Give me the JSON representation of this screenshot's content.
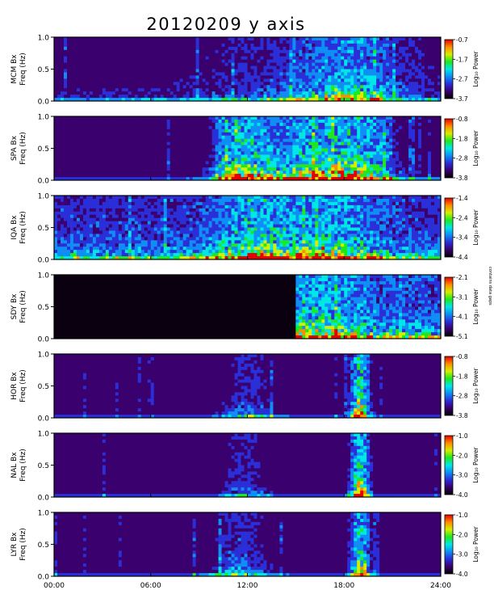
{
  "chart_data": {
    "type": "heatmap",
    "title": "20120209 y axis",
    "x": {
      "ticks": [
        "00:00",
        "06:00",
        "12:00",
        "18:00",
        "24:00"
      ],
      "range_hours": [
        0,
        24
      ]
    },
    "panels": [
      {
        "station": "MCM Bx",
        "ylabel": "Freq (Hz)",
        "yticks": [
          "1.0",
          "0.5",
          "0.0"
        ],
        "ylim": [
          0,
          1
        ],
        "colorbar_label": "Log₁₀ Power",
        "colorbar_ticks": [
          "-0.7",
          "-1.7",
          "-2.7",
          "-3.7"
        ],
        "clim": [
          -3.7,
          -0.7
        ]
      },
      {
        "station": "SPA Bx",
        "ylabel": "Freq (Hz)",
        "yticks": [
          "1.0",
          "0.5",
          "0.0"
        ],
        "ylim": [
          0,
          1
        ],
        "colorbar_label": "Log₁₀ Power",
        "colorbar_ticks": [
          "-0.8",
          "-1.8",
          "-2.8",
          "-3.8"
        ],
        "clim": [
          -3.8,
          -0.8
        ]
      },
      {
        "station": "IQA Bx",
        "ylabel": "Freq (Hz)",
        "yticks": [
          "1.0",
          "0.5",
          "0.0"
        ],
        "ylim": [
          0,
          1
        ],
        "colorbar_label": "Log₁₀ Power",
        "colorbar_ticks": [
          "-1.4",
          "-2.4",
          "-3.4",
          "-4.4"
        ],
        "clim": [
          -4.4,
          -1.4
        ]
      },
      {
        "station": "SDY Bx",
        "ylabel": "Freq (Hz)",
        "yticks": [
          "1.0",
          "0.5",
          "0.0"
        ],
        "ylim": [
          0,
          1
        ],
        "colorbar_label": "Log₁₀ Power",
        "colorbar_ticks": [
          "-2.1",
          "-3.1",
          "-4.1",
          "-5.1"
        ],
        "clim": [
          -5.1,
          -2.1
        ]
      },
      {
        "station": "HOR Bx",
        "ylabel": "Freq (Hz)",
        "yticks": [
          "1.0",
          "0.5",
          "0.0"
        ],
        "ylim": [
          0,
          1
        ],
        "colorbar_label": "Log₁₀ Power",
        "colorbar_ticks": [
          "-0.8",
          "-1.8",
          "-2.8",
          "-3.8"
        ],
        "clim": [
          -3.8,
          -0.8
        ]
      },
      {
        "station": "NAL Bx",
        "ylabel": "Freq (Hz)",
        "yticks": [
          "1.0",
          "0.5",
          "0.0"
        ],
        "ylim": [
          0,
          1
        ],
        "colorbar_label": "Log₁₀ Power",
        "colorbar_ticks": [
          "-1.0",
          "-2.0",
          "-3.0",
          "-4.0"
        ],
        "clim": [
          -4.0,
          -1.0
        ]
      },
      {
        "station": "LYR Bx",
        "ylabel": "Freq (Hz)",
        "yticks": [
          "1.0",
          "0.5",
          "0.0"
        ],
        "ylim": [
          0,
          1
        ],
        "colorbar_label": "Log₁₀ Power",
        "colorbar_ticks": [
          "-1.0",
          "-2.0",
          "-3.0",
          "-4.0"
        ],
        "clim": [
          -4.0,
          -1.0
        ]
      }
    ],
    "side_note": "contains data gaps",
    "colormap": [
      "#000000",
      "#3a006e",
      "#2a2fd8",
      "#0f8ef5",
      "#00e7e7",
      "#1ee81e",
      "#d6ee00",
      "#ff8c00",
      "#e60000"
    ]
  }
}
